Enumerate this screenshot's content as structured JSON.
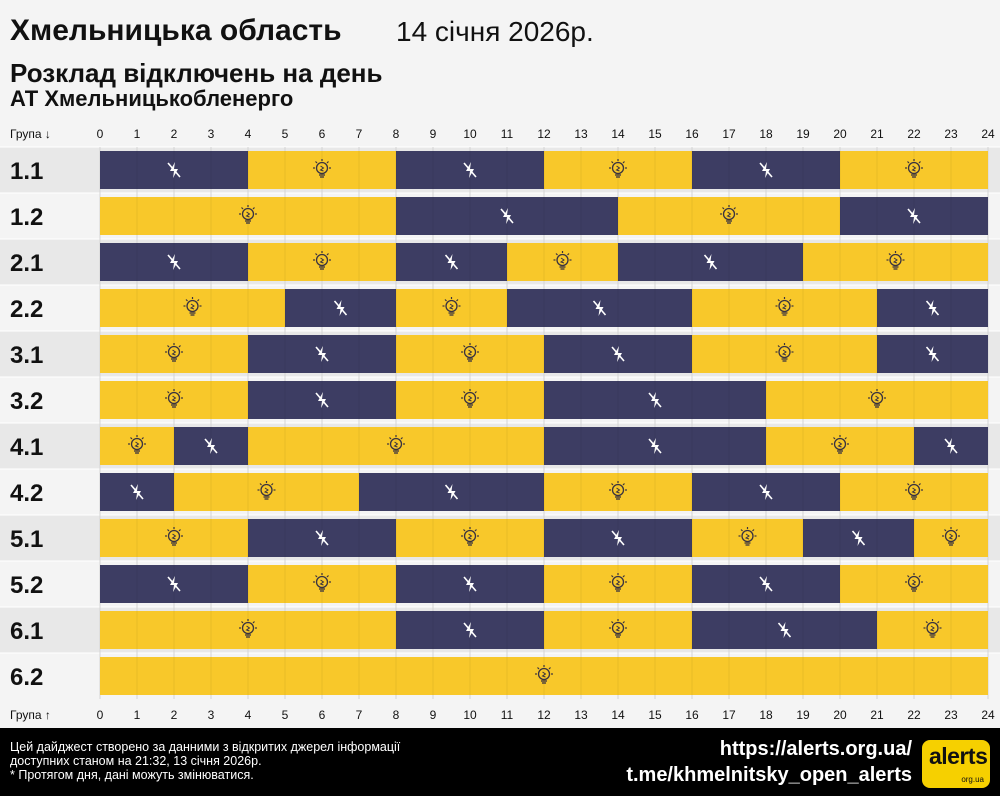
{
  "header": {
    "region": "Хмельницька область",
    "date": "14 січня 2026р.",
    "subtitle": "Розклад відключень на день",
    "company": "АТ Хмельницькобленерго"
  },
  "chart_data": {
    "type": "timeline",
    "axis_label_top": "Група ↓",
    "axis_label_bottom": "Група ↑",
    "x_ticks": [
      "0",
      "1",
      "2",
      "3",
      "4",
      "5",
      "6",
      "7",
      "8",
      "9",
      "10",
      "11",
      "12",
      "13",
      "14",
      "15",
      "16",
      "17",
      "18",
      "19",
      "20",
      "21",
      "22",
      "23",
      "24"
    ],
    "xlim": [
      0,
      24
    ],
    "state_colors": {
      "on": "#f8c82a",
      "off": "#3d3d63"
    },
    "icons": {
      "on": "light-bulb-icon",
      "off": "power-off-icon"
    },
    "groups": [
      {
        "label": "1.1",
        "segments": [
          [
            0,
            4,
            "off"
          ],
          [
            4,
            8,
            "on"
          ],
          [
            8,
            12,
            "off"
          ],
          [
            12,
            16,
            "on"
          ],
          [
            16,
            20,
            "off"
          ],
          [
            20,
            24,
            "on"
          ]
        ]
      },
      {
        "label": "1.2",
        "segments": [
          [
            0,
            8,
            "on"
          ],
          [
            8,
            14,
            "off"
          ],
          [
            14,
            20,
            "on"
          ],
          [
            20,
            24,
            "off"
          ]
        ]
      },
      {
        "label": "2.1",
        "segments": [
          [
            0,
            4,
            "off"
          ],
          [
            4,
            8,
            "on"
          ],
          [
            8,
            11,
            "off"
          ],
          [
            11,
            14,
            "on"
          ],
          [
            14,
            19,
            "off"
          ],
          [
            19,
            24,
            "on"
          ]
        ]
      },
      {
        "label": "2.2",
        "segments": [
          [
            0,
            5,
            "on"
          ],
          [
            5,
            8,
            "off"
          ],
          [
            8,
            11,
            "on"
          ],
          [
            11,
            16,
            "off"
          ],
          [
            16,
            21,
            "on"
          ],
          [
            21,
            24,
            "off"
          ]
        ]
      },
      {
        "label": "3.1",
        "segments": [
          [
            0,
            4,
            "on"
          ],
          [
            4,
            8,
            "off"
          ],
          [
            8,
            12,
            "on"
          ],
          [
            12,
            16,
            "off"
          ],
          [
            16,
            21,
            "on"
          ],
          [
            21,
            24,
            "off"
          ]
        ]
      },
      {
        "label": "3.2",
        "segments": [
          [
            0,
            4,
            "on"
          ],
          [
            4,
            8,
            "off"
          ],
          [
            8,
            12,
            "on"
          ],
          [
            12,
            18,
            "off"
          ],
          [
            18,
            24,
            "on"
          ]
        ]
      },
      {
        "label": "4.1",
        "segments": [
          [
            0,
            2,
            "on"
          ],
          [
            2,
            4,
            "off"
          ],
          [
            4,
            12,
            "on"
          ],
          [
            12,
            18,
            "off"
          ],
          [
            18,
            22,
            "on"
          ],
          [
            22,
            24,
            "off"
          ]
        ]
      },
      {
        "label": "4.2",
        "segments": [
          [
            0,
            2,
            "off"
          ],
          [
            2,
            7,
            "on"
          ],
          [
            7,
            12,
            "off"
          ],
          [
            12,
            16,
            "on"
          ],
          [
            16,
            20,
            "off"
          ],
          [
            20,
            24,
            "on"
          ]
        ]
      },
      {
        "label": "5.1",
        "segments": [
          [
            0,
            4,
            "on"
          ],
          [
            4,
            8,
            "off"
          ],
          [
            8,
            12,
            "on"
          ],
          [
            12,
            16,
            "off"
          ],
          [
            16,
            19,
            "on"
          ],
          [
            19,
            22,
            "off"
          ],
          [
            22,
            24,
            "on"
          ]
        ]
      },
      {
        "label": "5.2",
        "segments": [
          [
            0,
            4,
            "off"
          ],
          [
            4,
            8,
            "on"
          ],
          [
            8,
            12,
            "off"
          ],
          [
            12,
            16,
            "on"
          ],
          [
            16,
            20,
            "off"
          ],
          [
            20,
            24,
            "on"
          ]
        ]
      },
      {
        "label": "6.1",
        "segments": [
          [
            0,
            8,
            "on"
          ],
          [
            8,
            12,
            "off"
          ],
          [
            12,
            16,
            "on"
          ],
          [
            16,
            21,
            "off"
          ],
          [
            21,
            24,
            "on"
          ]
        ]
      },
      {
        "label": "6.2",
        "segments": [
          [
            0,
            24,
            "on"
          ]
        ]
      }
    ]
  },
  "footer": {
    "note_line1": "Цей дайджест створено за данними з відкритих джерел інформації",
    "note_line2": "доступних станом на 21:32, 13 січня 2026р.",
    "note_line3": "* Протягом дня, дані можуть змінюватися.",
    "link_site": "https://alerts.org.ua/",
    "link_telegram": "t.me/khmelnitsky_open_alerts",
    "logo_text": "alerts",
    "logo_sub": "org.ua"
  }
}
